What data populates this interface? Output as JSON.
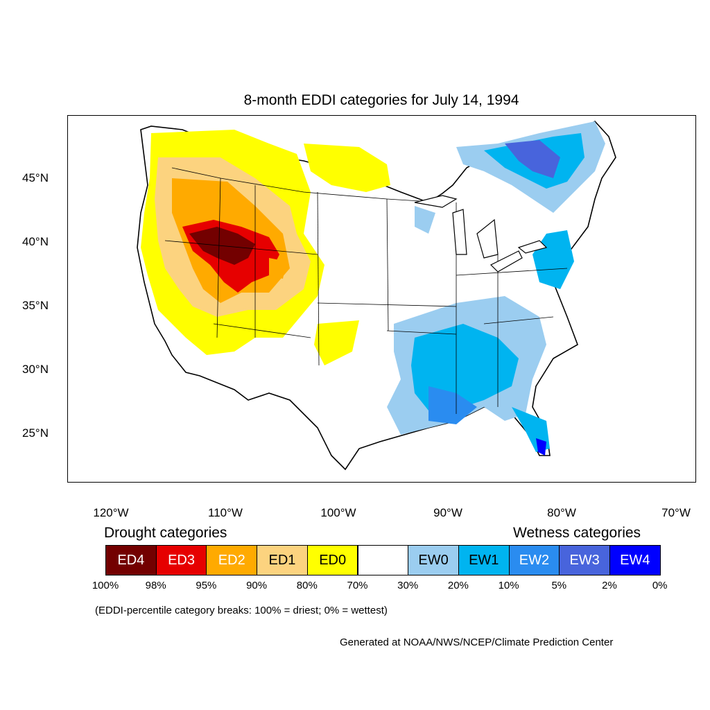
{
  "title": "8-month EDDI categories for July 14, 1994",
  "lat_ticks": [
    "45°N",
    "40°N",
    "35°N",
    "30°N",
    "25°N"
  ],
  "lon_ticks": [
    "120°W",
    "110°W",
    "100°W",
    "90°W",
    "80°W",
    "70°W"
  ],
  "drought_title": "Drought categories",
  "wetness_title": "Wetness categories",
  "categories": [
    {
      "label": "ED4",
      "color": "#730000",
      "text_color": "#ffffff"
    },
    {
      "label": "ED3",
      "color": "#e60000",
      "text_color": "#ffffff"
    },
    {
      "label": "ED2",
      "color": "#ffaa00",
      "text_color": "#ffffff"
    },
    {
      "label": "ED1",
      "color": "#fcd37f",
      "text_color": "#000000"
    },
    {
      "label": "ED0",
      "color": "#ffff00",
      "text_color": "#000000"
    },
    {
      "label": "",
      "color": "#ffffff",
      "text_color": "#000000"
    },
    {
      "label": "EW0",
      "color": "#9bcdf0",
      "text_color": "#000000"
    },
    {
      "label": "EW1",
      "color": "#00b4f0",
      "text_color": "#000000"
    },
    {
      "label": "EW2",
      "color": "#2a8cf0",
      "text_color": "#ffffff"
    },
    {
      "label": "EW3",
      "color": "#4864dc",
      "text_color": "#ffffff"
    },
    {
      "label": "EW4",
      "color": "#0000ff",
      "text_color": "#ffffff"
    }
  ],
  "percent_breaks": [
    "100%",
    "98%",
    "95%",
    "90%",
    "80%",
    "70%",
    "30%",
    "20%",
    "10%",
    "5%",
    "2%",
    "0%"
  ],
  "note": "(EDDI-percentile category breaks: 100% = driest; 0% = wettest)",
  "credit": "Generated at NOAA/NWS/NCEP/Climate Prediction Center"
}
